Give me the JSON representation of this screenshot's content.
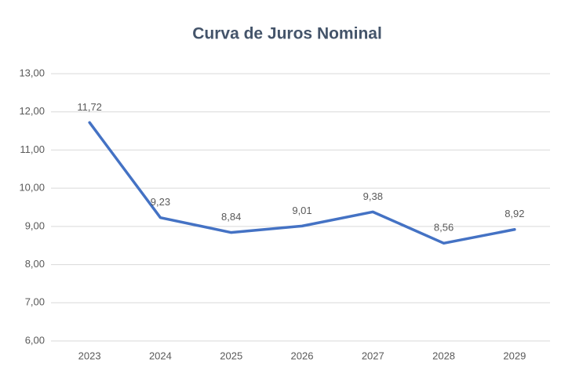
{
  "chart_data": {
    "type": "line",
    "title": "Curva de Juros Nominal",
    "categories": [
      "2023",
      "2024",
      "2025",
      "2026",
      "2027",
      "2028",
      "2029"
    ],
    "values": [
      11.72,
      9.23,
      8.84,
      9.01,
      9.38,
      8.56,
      8.92
    ],
    "value_labels": [
      "11,72",
      "9,23",
      "8,84",
      "9,01",
      "9,38",
      "8,56",
      "8,92"
    ],
    "color": "#4472c4",
    "ylim": [
      6,
      13
    ],
    "yticks": [
      {
        "value": 6,
        "label": "6,00"
      },
      {
        "value": 7,
        "label": "7,00"
      },
      {
        "value": 8,
        "label": "8,00"
      },
      {
        "value": 9,
        "label": "9,00"
      },
      {
        "value": 10,
        "label": "10,00"
      },
      {
        "value": 11,
        "label": "11,00"
      },
      {
        "value": 12,
        "label": "12,00"
      },
      {
        "value": 13,
        "label": "13,00"
      }
    ],
    "grid": true
  }
}
